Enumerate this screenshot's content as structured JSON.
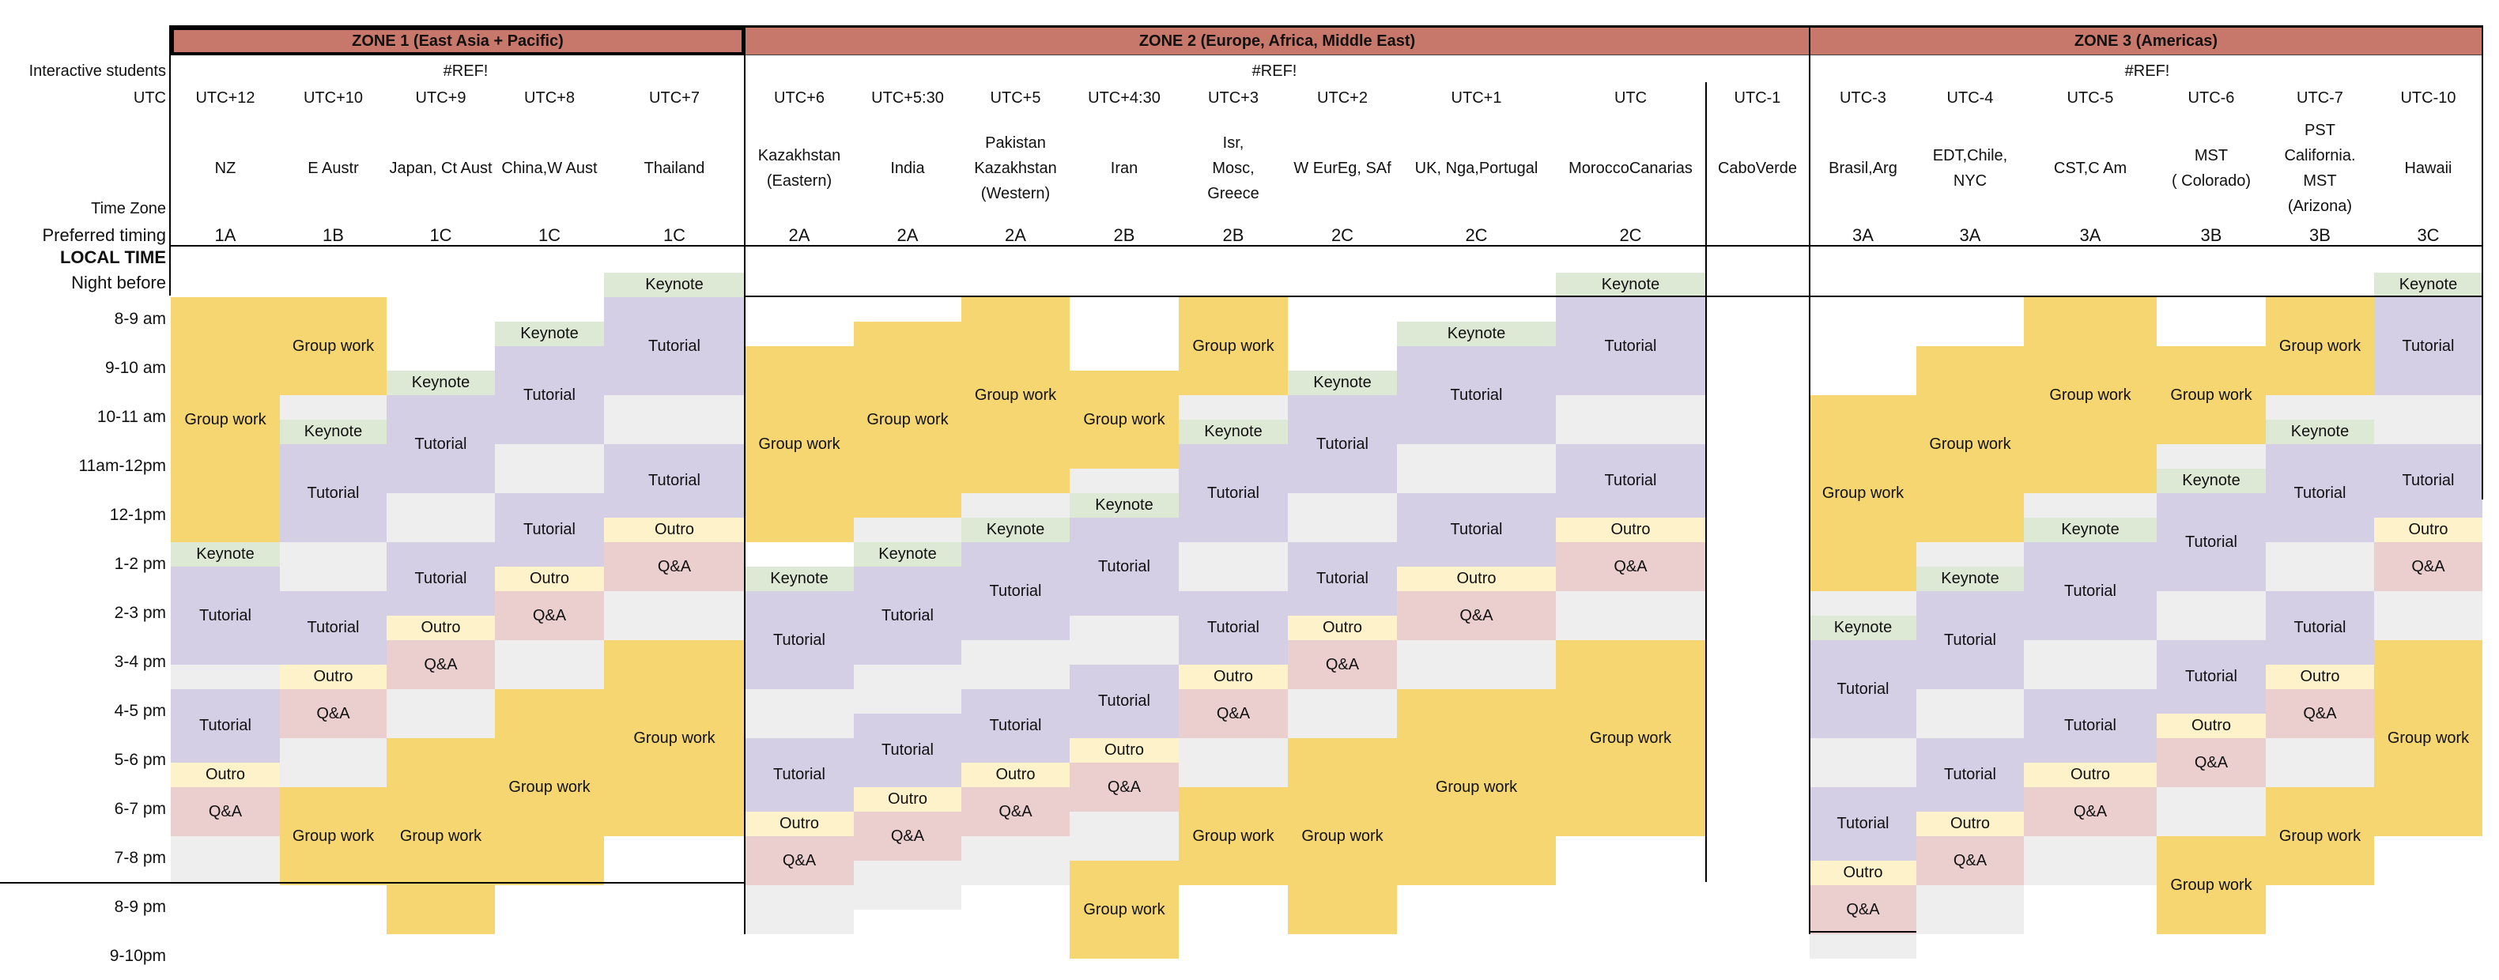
{
  "zones": [
    {
      "title": "ZONE 1 (East Asia + Pacific)"
    },
    {
      "title": "ZONE 2 (Europe, Africa, Middle East)"
    },
    {
      "title": "ZONE 3 (Americas)"
    }
  ],
  "ref_values": [
    "#REF!",
    "#REF!",
    "#REF!"
  ],
  "row_labels": {
    "interactive": "Interactive students",
    "utc": "UTC",
    "tz": "Time Zone",
    "pref": "Preferred timing",
    "local": "LOCAL TIME",
    "night": "Night before"
  },
  "hours": [
    "8-9 am",
    "9-10 am",
    "10-11 am",
    "11am-12pm",
    "12-1pm",
    "1-2 pm",
    "2-3 pm",
    "3-4 pm",
    "4-5 pm",
    "5-6 pm",
    "6-7 pm",
    "7-8 pm",
    "8-9 pm",
    "9-10pm"
  ],
  "legend_colors": {
    "Keynote": "#dde8d5",
    "Tutorial": "#d4cfe5",
    "Group work": "#f5d670",
    "Outro": "#fdf2c9",
    "Q&A": "#ebcfcf",
    "blank": "#eeeeee"
  },
  "columns": [
    {
      "utc": "UTC+12",
      "tz": [
        "NZ"
      ],
      "pref": "1A",
      "segments": [
        {
          "t": "Group work",
          "s": 0,
          "e": 5
        },
        {
          "t": "Keynote",
          "s": 5,
          "e": 5.5
        },
        {
          "t": "Tutorial",
          "s": 5.5,
          "e": 7.5
        },
        {
          "t": "blank",
          "s": 7.5,
          "e": 8
        },
        {
          "t": "Tutorial",
          "s": 8,
          "e": 9.5
        },
        {
          "t": "Outro",
          "s": 9.5,
          "e": 10
        },
        {
          "t": "Q&A",
          "s": 10,
          "e": 11
        },
        {
          "t": "blank",
          "s": 11,
          "e": 12
        }
      ]
    },
    {
      "utc": "UTC+10",
      "tz": [
        "E Austr"
      ],
      "pref": "1B",
      "segments": [
        {
          "t": "Group work",
          "s": 0,
          "e": 2
        },
        {
          "t": "blank",
          "s": 2,
          "e": 2.5
        },
        {
          "t": "Keynote",
          "s": 2.5,
          "e": 3
        },
        {
          "t": "Tutorial",
          "s": 3,
          "e": 5
        },
        {
          "t": "blank",
          "s": 5,
          "e": 6
        },
        {
          "t": "Tutorial",
          "s": 6,
          "e": 7.5
        },
        {
          "t": "Outro",
          "s": 7.5,
          "e": 8
        },
        {
          "t": "Q&A",
          "s": 8,
          "e": 9
        },
        {
          "t": "blank",
          "s": 9,
          "e": 10
        },
        {
          "t": "Group work",
          "s": 10,
          "e": 12
        }
      ]
    },
    {
      "utc": "UTC+9",
      "tz": [
        "Japan, Ct Aust"
      ],
      "pref": "1C",
      "segments": [
        {
          "t": "Keynote",
          "s": 1.5,
          "e": 2
        },
        {
          "t": "Tutorial",
          "s": 2,
          "e": 4
        },
        {
          "t": "blank",
          "s": 4,
          "e": 5
        },
        {
          "t": "Tutorial",
          "s": 5,
          "e": 6.5
        },
        {
          "t": "Outro",
          "s": 6.5,
          "e": 7
        },
        {
          "t": "Q&A",
          "s": 7,
          "e": 8
        },
        {
          "t": "blank",
          "s": 8,
          "e": 9
        },
        {
          "t": "Group work",
          "s": 9,
          "e": 13
        }
      ]
    },
    {
      "utc": "UTC+8",
      "tz": [
        "China,W Aust"
      ],
      "pref": "1C",
      "segments": [
        {
          "t": "Keynote",
          "s": 0.5,
          "e": 1
        },
        {
          "t": "Tutorial",
          "s": 1,
          "e": 3
        },
        {
          "t": "blank",
          "s": 3,
          "e": 4
        },
        {
          "t": "Tutorial",
          "s": 4,
          "e": 5.5
        },
        {
          "t": "Outro",
          "s": 5.5,
          "e": 6
        },
        {
          "t": "Q&A",
          "s": 6,
          "e": 7
        },
        {
          "t": "blank",
          "s": 7,
          "e": 8
        },
        {
          "t": "Group work",
          "s": 8,
          "e": 12
        }
      ]
    },
    {
      "utc": "UTC+7",
      "tz": [
        "Thailand"
      ],
      "pref": "1C",
      "segments": [
        {
          "t": "Keynote",
          "s": -0.5,
          "e": 0
        },
        {
          "t": "Tutorial",
          "s": 0,
          "e": 2
        },
        {
          "t": "blank",
          "s": 2,
          "e": 3
        },
        {
          "t": "Tutorial",
          "s": 3,
          "e": 4.5
        },
        {
          "t": "Outro",
          "s": 4.5,
          "e": 5
        },
        {
          "t": "Q&A",
          "s": 5,
          "e": 6
        },
        {
          "t": "blank",
          "s": 6,
          "e": 7
        },
        {
          "t": "Group work",
          "s": 7,
          "e": 11
        }
      ]
    },
    {
      "utc": "UTC+6",
      "tz": [
        "Kazakhstan",
        "(Eastern)"
      ],
      "pref": "2A",
      "segments": [
        {
          "t": "Group work",
          "s": 1,
          "e": 5
        },
        {
          "t": "Keynote",
          "s": 5.5,
          "e": 6
        },
        {
          "t": "Tutorial",
          "s": 6,
          "e": 8
        },
        {
          "t": "blank",
          "s": 8,
          "e": 9
        },
        {
          "t": "Tutorial",
          "s": 9,
          "e": 10.5
        },
        {
          "t": "Outro",
          "s": 10.5,
          "e": 11
        },
        {
          "t": "Q&A",
          "s": 11,
          "e": 12
        },
        {
          "t": "blank",
          "s": 12,
          "e": 13
        }
      ]
    },
    {
      "utc": "UTC+5:30",
      "tz": [
        "India"
      ],
      "pref": "2A",
      "segments": [
        {
          "t": "Group work",
          "s": 0.5,
          "e": 4.5
        },
        {
          "t": "blank",
          "s": 4.5,
          "e": 5
        },
        {
          "t": "Keynote",
          "s": 5,
          "e": 5.5
        },
        {
          "t": "Tutorial",
          "s": 5.5,
          "e": 7.5
        },
        {
          "t": "blank",
          "s": 7.5,
          "e": 8.5
        },
        {
          "t": "Tutorial",
          "s": 8.5,
          "e": 10
        },
        {
          "t": "Outro",
          "s": 10,
          "e": 10.5
        },
        {
          "t": "Q&A",
          "s": 10.5,
          "e": 11.5
        },
        {
          "t": "blank",
          "s": 11.5,
          "e": 12.5
        }
      ]
    },
    {
      "utc": "UTC+5",
      "tz": [
        "Pakistan",
        "Kazakhstan",
        "(Western)"
      ],
      "pref": "2A",
      "segments": [
        {
          "t": "Group work",
          "s": 0,
          "e": 4
        },
        {
          "t": "blank",
          "s": 4,
          "e": 4.5
        },
        {
          "t": "Keynote",
          "s": 4.5,
          "e": 5
        },
        {
          "t": "Tutorial",
          "s": 5,
          "e": 7
        },
        {
          "t": "blank",
          "s": 7,
          "e": 8
        },
        {
          "t": "Tutorial",
          "s": 8,
          "e": 9.5
        },
        {
          "t": "Outro",
          "s": 9.5,
          "e": 10
        },
        {
          "t": "Q&A",
          "s": 10,
          "e": 11
        },
        {
          "t": "blank",
          "s": 11,
          "e": 12
        }
      ]
    },
    {
      "utc": "UTC+4:30",
      "tz": [
        "Iran"
      ],
      "pref": "2B",
      "segments": [
        {
          "t": "Group work",
          "s": 1.5,
          "e": 3.5
        },
        {
          "t": "blank",
          "s": 3.5,
          "e": 4
        },
        {
          "t": "Keynote",
          "s": 4,
          "e": 4.5
        },
        {
          "t": "Tutorial",
          "s": 4.5,
          "e": 6.5
        },
        {
          "t": "blank",
          "s": 6.5,
          "e": 7.5
        },
        {
          "t": "Tutorial",
          "s": 7.5,
          "e": 9
        },
        {
          "t": "Outro",
          "s": 9,
          "e": 9.5
        },
        {
          "t": "Q&A",
          "s": 9.5,
          "e": 10.5
        },
        {
          "t": "blank",
          "s": 10.5,
          "e": 11.5
        },
        {
          "t": "Group work",
          "s": 11.5,
          "e": 13.5
        }
      ]
    },
    {
      "utc": "UTC+3",
      "tz": [
        "Isr,",
        "Mosc,",
        "Greece"
      ],
      "pref": "2B",
      "segments": [
        {
          "t": "Group work",
          "s": 0,
          "e": 2
        },
        {
          "t": "blank",
          "s": 2,
          "e": 2.5
        },
        {
          "t": "Keynote",
          "s": 2.5,
          "e": 3
        },
        {
          "t": "Tutorial",
          "s": 3,
          "e": 5
        },
        {
          "t": "blank",
          "s": 5,
          "e": 6
        },
        {
          "t": "Tutorial",
          "s": 6,
          "e": 7.5
        },
        {
          "t": "Outro",
          "s": 7.5,
          "e": 8
        },
        {
          "t": "Q&A",
          "s": 8,
          "e": 9
        },
        {
          "t": "blank",
          "s": 9,
          "e": 10
        },
        {
          "t": "Group work",
          "s": 10,
          "e": 12
        }
      ]
    },
    {
      "utc": "UTC+2",
      "tz": [
        "W EurEg, SAf"
      ],
      "pref": "2C",
      "segments": [
        {
          "t": "Keynote",
          "s": 1.5,
          "e": 2
        },
        {
          "t": "Tutorial",
          "s": 2,
          "e": 4
        },
        {
          "t": "blank",
          "s": 4,
          "e": 5
        },
        {
          "t": "Tutorial",
          "s": 5,
          "e": 6.5
        },
        {
          "t": "Outro",
          "s": 6.5,
          "e": 7
        },
        {
          "t": "Q&A",
          "s": 7,
          "e": 8
        },
        {
          "t": "blank",
          "s": 8,
          "e": 9
        },
        {
          "t": "Group work",
          "s": 9,
          "e": 13
        }
      ]
    },
    {
      "utc": "UTC+1",
      "tz": [
        "UK, Nga,Portugal"
      ],
      "pref": "2C",
      "segments": [
        {
          "t": "Keynote",
          "s": 0.5,
          "e": 1
        },
        {
          "t": "Tutorial",
          "s": 1,
          "e": 3
        },
        {
          "t": "blank",
          "s": 3,
          "e": 4
        },
        {
          "t": "Tutorial",
          "s": 4,
          "e": 5.5
        },
        {
          "t": "Outro",
          "s": 5.5,
          "e": 6
        },
        {
          "t": "Q&A",
          "s": 6,
          "e": 7
        },
        {
          "t": "blank",
          "s": 7,
          "e": 8
        },
        {
          "t": "Group work",
          "s": 8,
          "e": 12
        }
      ]
    },
    {
      "utc": "UTC",
      "tz": [
        "MoroccoCanarias"
      ],
      "pref": "2C",
      "segments": [
        {
          "t": "Keynote",
          "s": -0.5,
          "e": 0
        },
        {
          "t": "Tutorial",
          "s": 0,
          "e": 2
        },
        {
          "t": "blank",
          "s": 2,
          "e": 3
        },
        {
          "t": "Tutorial",
          "s": 3,
          "e": 4.5
        },
        {
          "t": "Outro",
          "s": 4.5,
          "e": 5
        },
        {
          "t": "Q&A",
          "s": 5,
          "e": 6
        },
        {
          "t": "blank",
          "s": 6,
          "e": 7
        },
        {
          "t": "Group work",
          "s": 7,
          "e": 11
        }
      ]
    },
    {
      "utc": "UTC-1",
      "tz": [
        "CaboVerde"
      ],
      "pref": "",
      "segments": []
    },
    {
      "utc": "UTC-3",
      "tz": [
        "Brasil,Arg"
      ],
      "pref": "3A",
      "segments": [
        {
          "t": "Group work",
          "s": 2,
          "e": 6
        },
        {
          "t": "blank",
          "s": 6,
          "e": 6.5
        },
        {
          "t": "Keynote",
          "s": 6.5,
          "e": 7
        },
        {
          "t": "Tutorial",
          "s": 7,
          "e": 9
        },
        {
          "t": "blank",
          "s": 9,
          "e": 10
        },
        {
          "t": "Tutorial",
          "s": 10,
          "e": 11.5
        },
        {
          "t": "Outro",
          "s": 11.5,
          "e": 12
        },
        {
          "t": "Q&A",
          "s": 12,
          "e": 13
        },
        {
          "t": "blank",
          "s": 13,
          "e": 13.5
        }
      ]
    },
    {
      "utc": "UTC-4",
      "tz": [
        "EDT,Chile, NYC"
      ],
      "pref": "3A",
      "segments": [
        {
          "t": "Group work",
          "s": 1,
          "e": 5
        },
        {
          "t": "blank",
          "s": 5,
          "e": 5.5
        },
        {
          "t": "Keynote",
          "s": 5.5,
          "e": 6
        },
        {
          "t": "Tutorial",
          "s": 6,
          "e": 8
        },
        {
          "t": "blank",
          "s": 8,
          "e": 9
        },
        {
          "t": "Tutorial",
          "s": 9,
          "e": 10.5
        },
        {
          "t": "Outro",
          "s": 10.5,
          "e": 11
        },
        {
          "t": "Q&A",
          "s": 11,
          "e": 12
        },
        {
          "t": "blank",
          "s": 12,
          "e": 13
        }
      ]
    },
    {
      "utc": "UTC-5",
      "tz": [
        "CST,C Am"
      ],
      "pref": "3A",
      "segments": [
        {
          "t": "Group work",
          "s": 0,
          "e": 4
        },
        {
          "t": "blank",
          "s": 4,
          "e": 4.5
        },
        {
          "t": "Keynote",
          "s": 4.5,
          "e": 5
        },
        {
          "t": "Tutorial",
          "s": 5,
          "e": 7
        },
        {
          "t": "blank",
          "s": 7,
          "e": 8
        },
        {
          "t": "Tutorial",
          "s": 8,
          "e": 9.5
        },
        {
          "t": "Outro",
          "s": 9.5,
          "e": 10
        },
        {
          "t": "Q&A",
          "s": 10,
          "e": 11
        },
        {
          "t": "blank",
          "s": 11,
          "e": 12
        }
      ]
    },
    {
      "utc": "UTC-6",
      "tz": [
        "MST",
        "( Colorado)"
      ],
      "pref": "3B",
      "segments": [
        {
          "t": "Group work",
          "s": 1,
          "e": 3
        },
        {
          "t": "blank",
          "s": 3,
          "e": 3.5
        },
        {
          "t": "Keynote",
          "s": 3.5,
          "e": 4
        },
        {
          "t": "Tutorial",
          "s": 4,
          "e": 6
        },
        {
          "t": "blank",
          "s": 6,
          "e": 7
        },
        {
          "t": "Tutorial",
          "s": 7,
          "e": 8.5
        },
        {
          "t": "Outro",
          "s": 8.5,
          "e": 9
        },
        {
          "t": "Q&A",
          "s": 9,
          "e": 10
        },
        {
          "t": "blank",
          "s": 10,
          "e": 11
        },
        {
          "t": "Group work",
          "s": 11,
          "e": 13
        }
      ]
    },
    {
      "utc": "UTC-7",
      "tz": [
        "PST",
        "California.",
        "MST",
        "(Arizona)"
      ],
      "pref": "3B",
      "segments": [
        {
          "t": "Group work",
          "s": 0,
          "e": 2
        },
        {
          "t": "blank",
          "s": 2,
          "e": 2.5
        },
        {
          "t": "Keynote",
          "s": 2.5,
          "e": 3
        },
        {
          "t": "Tutorial",
          "s": 3,
          "e": 5
        },
        {
          "t": "blank",
          "s": 5,
          "e": 6
        },
        {
          "t": "Tutorial",
          "s": 6,
          "e": 7.5
        },
        {
          "t": "Outro",
          "s": 7.5,
          "e": 8
        },
        {
          "t": "Q&A",
          "s": 8,
          "e": 9
        },
        {
          "t": "blank",
          "s": 9,
          "e": 10
        },
        {
          "t": "Group work",
          "s": 10,
          "e": 12
        }
      ]
    },
    {
      "utc": "UTC-10",
      "tz": [
        "Hawaii"
      ],
      "pref": "3C",
      "segments": [
        {
          "t": "Keynote",
          "s": -0.5,
          "e": 0
        },
        {
          "t": "Tutorial",
          "s": 0,
          "e": 2
        },
        {
          "t": "blank",
          "s": 2,
          "e": 3
        },
        {
          "t": "Tutorial",
          "s": 3,
          "e": 4.5
        },
        {
          "t": "Outro",
          "s": 4.5,
          "e": 5
        },
        {
          "t": "Q&A",
          "s": 5,
          "e": 6
        },
        {
          "t": "blank",
          "s": 6,
          "e": 7
        },
        {
          "t": "Group work",
          "s": 7,
          "e": 11
        }
      ]
    }
  ]
}
